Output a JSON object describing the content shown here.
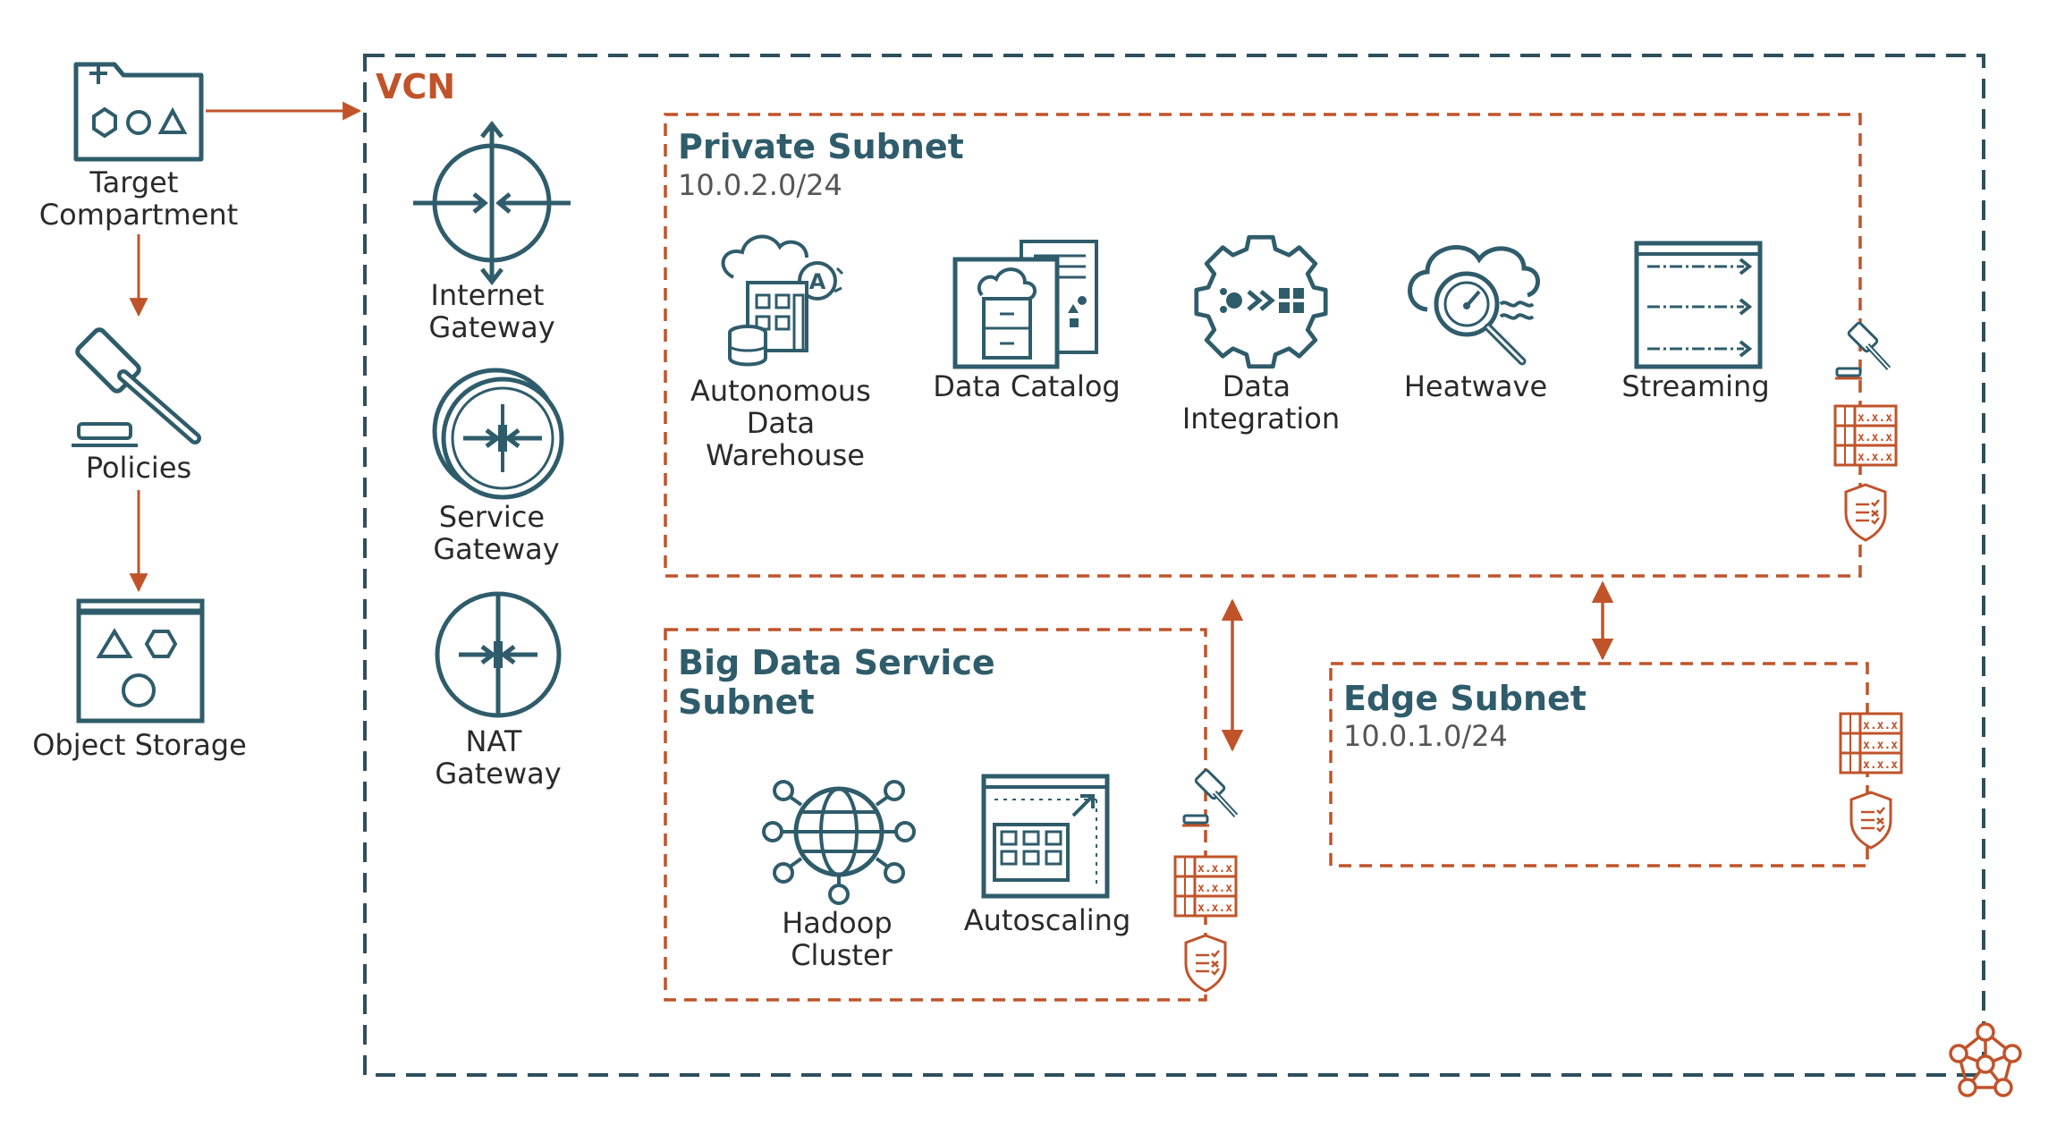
{
  "left_column": {
    "target_compartment": [
      "Target",
      "Compartment"
    ],
    "policies": "Policies",
    "object_storage": "Object Storage"
  },
  "vcn": {
    "label": "VCN",
    "internet_gateway": [
      "Internet",
      "Gateway"
    ],
    "service_gateway": [
      "Service",
      "Gateway"
    ],
    "nat_gateway": [
      "NAT",
      "Gateway"
    ]
  },
  "private_subnet": {
    "title": "Private Subnet",
    "cidr": "10.0.2.0/24",
    "autonomous_dw": [
      "Autonomous",
      "Data",
      "Warehouse"
    ],
    "data_catalog": "Data Catalog",
    "data_integration": [
      "Data",
      "Integration"
    ],
    "heatwave": "Heatwave",
    "streaming": "Streaming"
  },
  "big_data_subnet": {
    "title": [
      "Big Data Service",
      "Subnet"
    ],
    "hadoop": [
      "Hadoop",
      "Cluster"
    ],
    "autoscaling": "Autoscaling"
  },
  "edge_subnet": {
    "title": "Edge Subnet",
    "cidr": "10.0.1.0/24"
  },
  "security_list": [
    "x.x.x.",
    "x.x.x.",
    "x.x.x."
  ],
  "icons": {
    "compartment": "compartment-icon",
    "policy": "gavel-icon",
    "object_storage": "object-storage-icon",
    "internet_gateway": "internet-gateway-icon",
    "service_gateway": "service-gateway-icon",
    "nat_gateway": "nat-gateway-icon",
    "adw": "autonomous-data-warehouse-icon",
    "catalog": "data-catalog-icon",
    "integration": "data-integration-icon",
    "heatwave": "heatwave-icon",
    "streaming": "streaming-icon",
    "hadoop": "hadoop-cluster-icon",
    "autoscaling": "autoscaling-icon",
    "security_list": "security-list-icon",
    "shield": "security-shield-icon",
    "vcn": "vcn-icon"
  },
  "colors": {
    "teal": "#2f5c6b",
    "orange": "#c0532a"
  }
}
